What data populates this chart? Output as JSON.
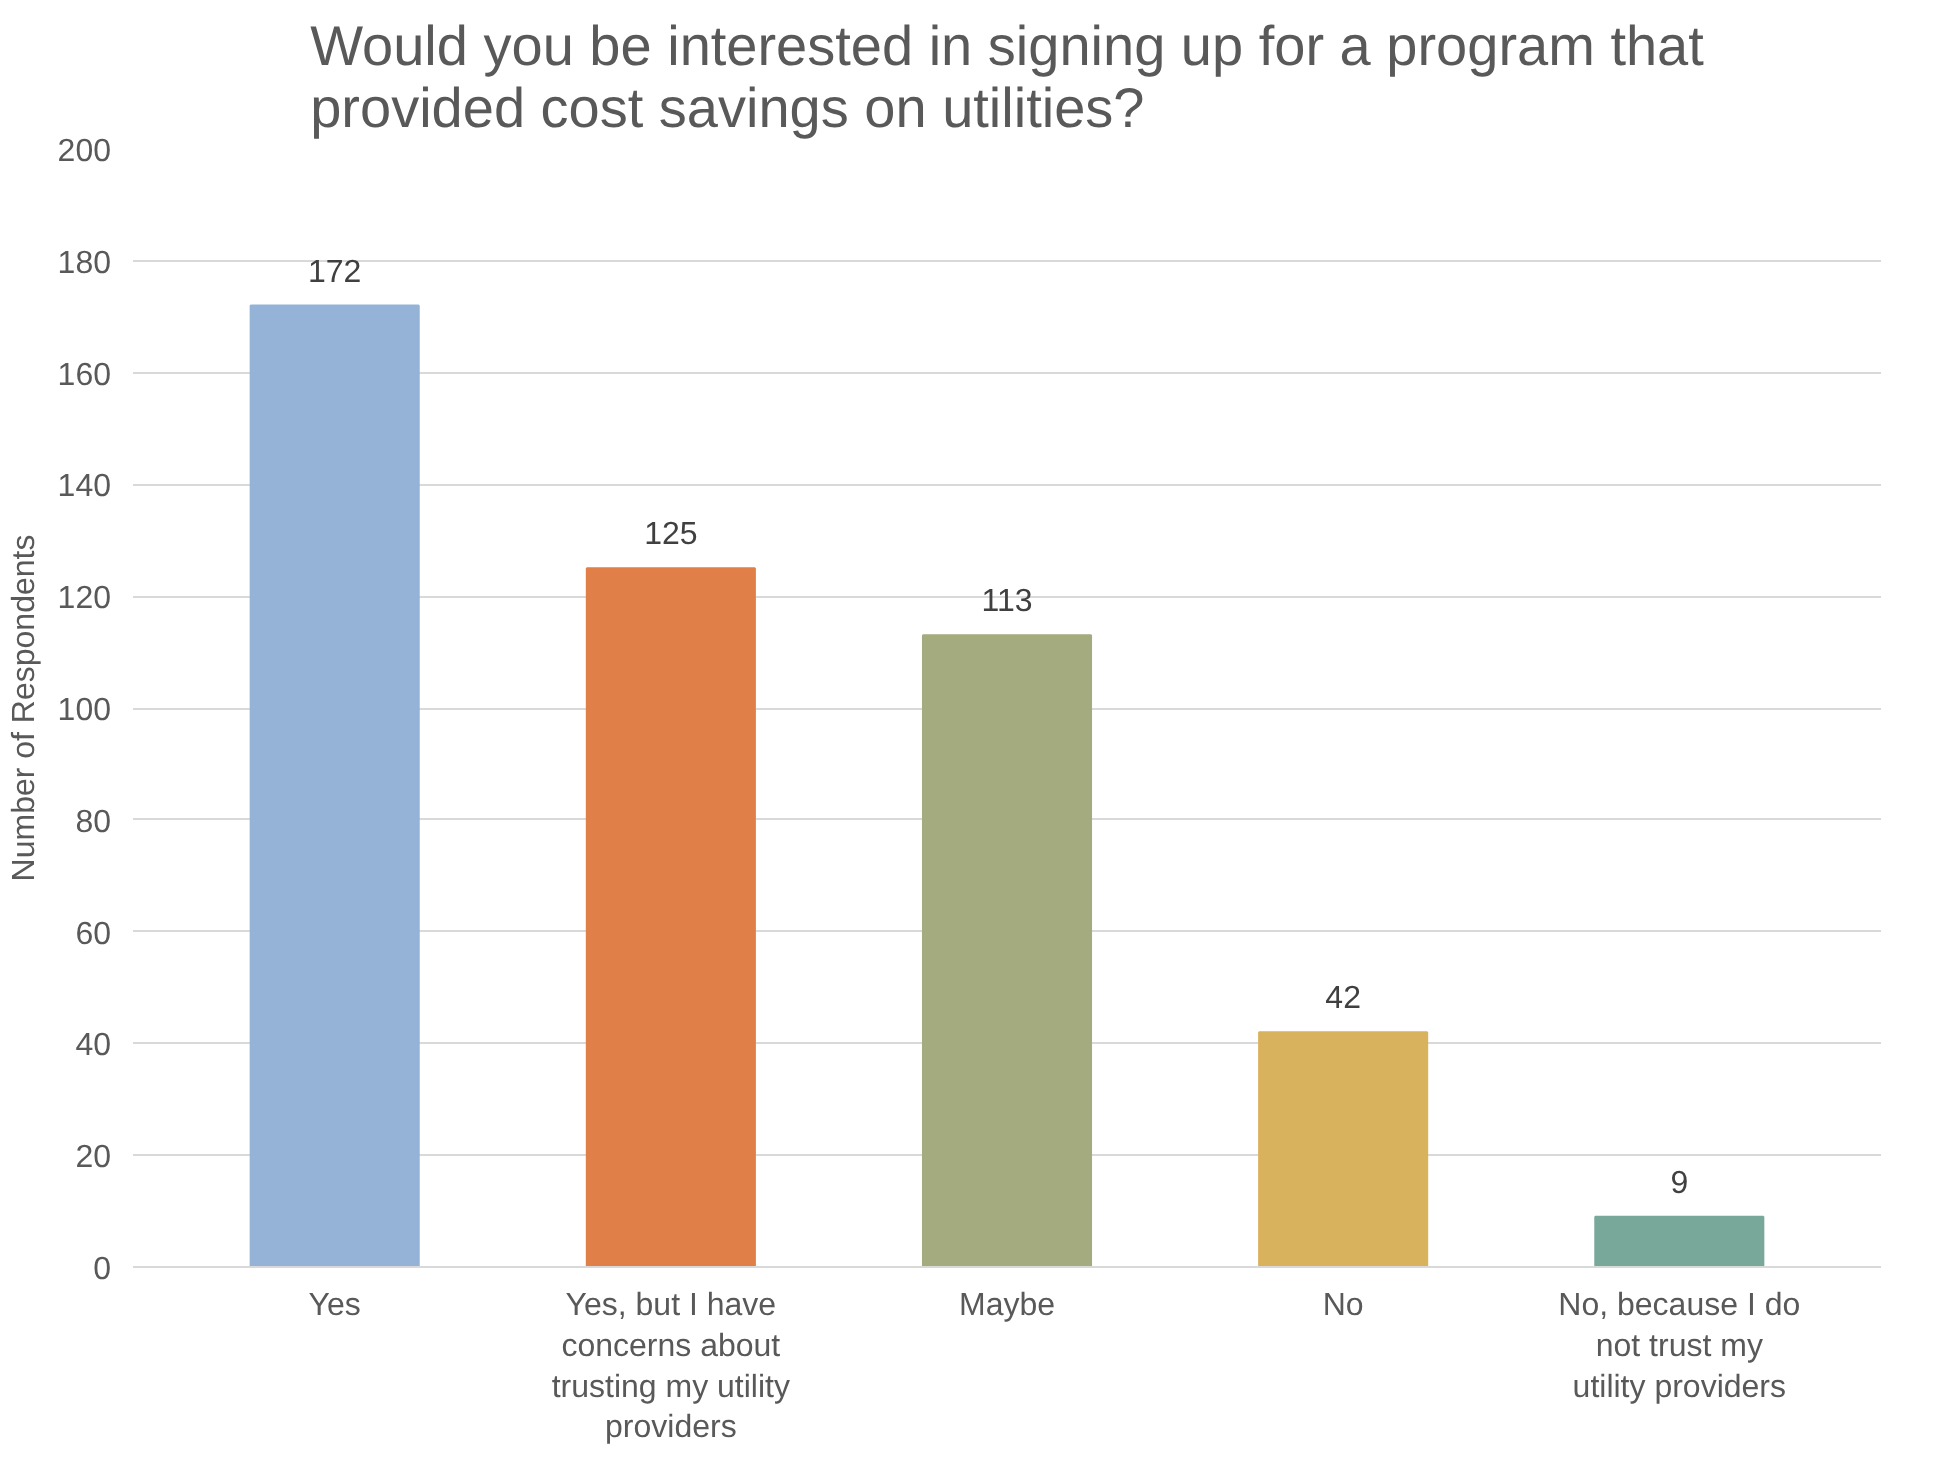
{
  "chart_data": {
    "type": "bar",
    "title": "Would you be interested in signing up for a program that provided cost savings on utilities?",
    "ylabel": "Number of Respondents",
    "categories": [
      "Yes",
      "Yes, but I have concerns about trusting my utility providers",
      "Maybe",
      "No",
      "No, because I do not trust my utility providers"
    ],
    "values": [
      172,
      125,
      113,
      42,
      9
    ],
    "colors": [
      "#95b3d7",
      "#e07f48",
      "#a4ab7e",
      "#d9b25d",
      "#78a89a"
    ],
    "ylim": [
      0,
      200
    ],
    "yticks": [
      0,
      20,
      40,
      60,
      80,
      100,
      120,
      140,
      160,
      180,
      200
    ],
    "grid": "y",
    "data_labels": true
  }
}
